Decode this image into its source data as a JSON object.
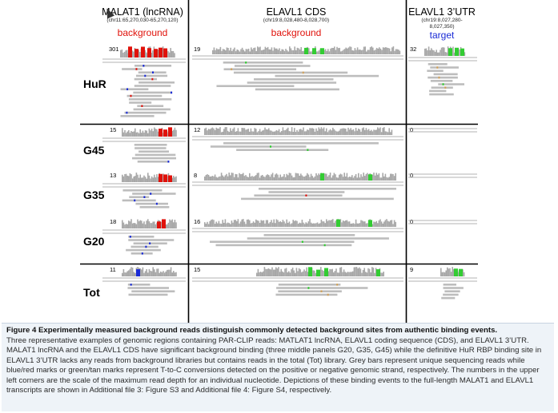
{
  "columns": [
    {
      "title": "MALAT1 (lncRNA)",
      "coord": "(chr11:65,270,030-65,270,120)",
      "tag": "background",
      "tag_color": "#e0120b"
    },
    {
      "title": "ELAVL1 CDS",
      "coord": "(chr19:8,028,480-8,028,700)",
      "tag": "background",
      "tag_color": "#e0120b"
    },
    {
      "title": "ELAVL1 3’UTR",
      "coord": "(chr19:8,027,280-",
      "coord2": "8,027,350)",
      "tag": "target",
      "tag_color": "#1a2bd6"
    }
  ],
  "rows": [
    "HuR",
    "G45",
    "G35",
    "G20",
    "Tot"
  ],
  "scales": [
    [
      "301",
      "19",
      "32"
    ],
    [
      "15",
      "12",
      "0"
    ],
    [
      "13",
      "8",
      "0"
    ],
    [
      "18",
      "16",
      "0"
    ],
    [
      "11",
      "15",
      "9"
    ]
  ],
  "caption": {
    "title": "Figure 4 Experimentally measured background reads distinguish commonly detected background sites from authentic binding events.",
    "body": "Three representative examples of genomic regions containing PAR-CLIP reads: MATLAT1 lncRNA, ELAVL1 coding sequence (CDS), and ELAVL1 3’UTR. MALAT1 lncRNA and the ELAVL1 CDS have significant background binding (three middle panels G20, G35, G45) while the definitive HuR RBP binding site in ELAVL1 3’UTR lacks any reads from background libraries but contains reads in the total (Tot) library. Grey bars represent unique sequencing reads while blue/red marks or green/tan marks represent T-to-C conversions detected on the positive or negative genomic strand, respectively. The numbers in the upper left corners are the scale of the maximum read depth for an individual nucleotide. Depictions of these binding events to the full-length MALAT1 and ELAVL1 transcripts are shown in Additional file 3: Figure S3 and Additional file 4: Figure S4, respectively."
  },
  "colors": {
    "read": "#bdbdbd",
    "coverage": "#a8a8a8",
    "pos_conv": "#1a2bd6",
    "pos_peak": "#e0120b",
    "neg_conv": "#33cc33",
    "neg_tan": "#d2a25a",
    "divider": "#000000"
  }
}
